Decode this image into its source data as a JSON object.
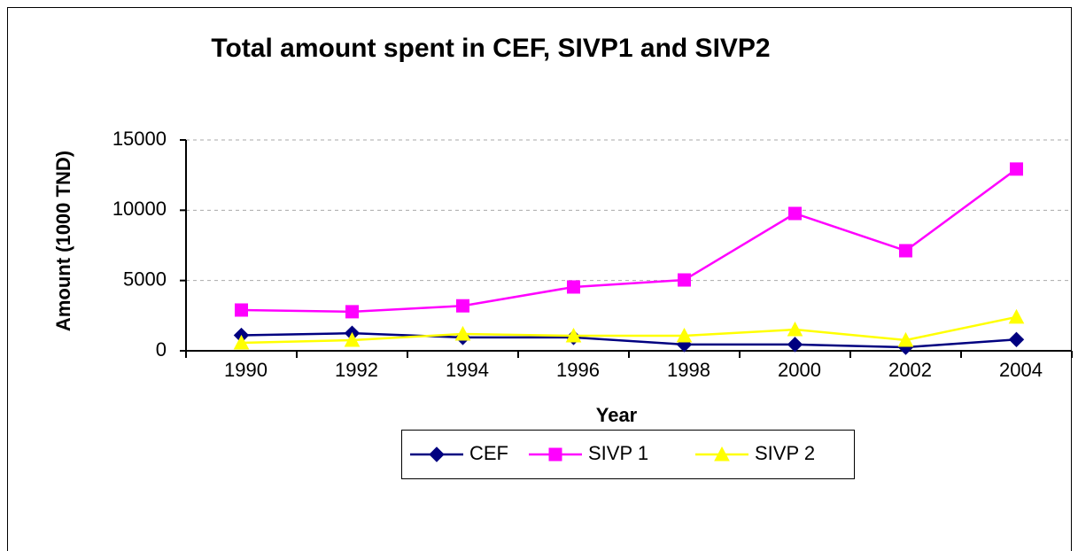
{
  "chart_data": {
    "type": "line",
    "title": "Total amount spent in CEF, SIVP1 and SIVP2",
    "x_label": "Year",
    "y_label": "Amount (1000 TND)",
    "categories": [
      "1990",
      "1992",
      "1994",
      "1996",
      "1998",
      "2000",
      "2002",
      "2004"
    ],
    "series": [
      {
        "name": "CEF",
        "color": "#000080",
        "marker": "diamond",
        "values": [
          1100,
          1250,
          950,
          950,
          450,
          450,
          250,
          800
        ]
      },
      {
        "name": "SIVP 1",
        "color": "#ff00ff",
        "marker": "square",
        "values": [
          2900,
          2780,
          3200,
          4540,
          5040,
          9770,
          7120,
          12930
        ]
      },
      {
        "name": "SIVP 2",
        "color": "#ffff00",
        "marker": "triangle",
        "values": [
          570,
          760,
          1200,
          1070,
          1070,
          1510,
          760,
          2400
        ]
      }
    ],
    "ylim": [
      0,
      15000
    ],
    "yticks": [
      0,
      5000,
      10000,
      15000
    ],
    "grid": true,
    "legend": "bottom"
  }
}
